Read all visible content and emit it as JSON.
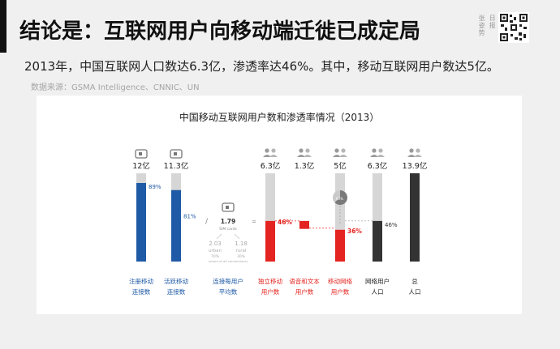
{
  "page": {
    "title": "结论是：互联网用户向移动端迁徙已成定局",
    "subtitle": "2013年，中国互联网人口数达6.3亿，渗透率达46%。其中，移动互联网用户数达5亿。",
    "source": "数据来源：GSMA Intelligence、CNNIC、UN",
    "brand": [
      "张姿势",
      "日报"
    ]
  },
  "colors": {
    "blue": "#1f5aa6",
    "red": "#e32420",
    "gray": "#d6d6d6",
    "dark": "#333333"
  },
  "chart_data": {
    "type": "bar",
    "title": "中国移动互联网用户数和渗透率情况（2013）",
    "bars": [
      {
        "value_label": "12亿",
        "icon": "sim-card-icon",
        "pct_label": "89%",
        "fill": 0.89,
        "color": "blue",
        "label": [
          "注册移动",
          "连接数"
        ]
      },
      {
        "value_label": "11.3亿",
        "icon": "sim-card-icon",
        "pct_label": "81%",
        "fill": 0.81,
        "color": "blue",
        "label": [
          "活跃移动",
          "连接数"
        ]
      },
      {
        "value_label": "6.3亿",
        "icon": "people-icon",
        "pct_label": "46%",
        "fill": 0.46,
        "color": "red",
        "label": [
          "独立移动",
          "用户数"
        ]
      },
      {
        "value_label": "1.3亿",
        "icon": "people-icon",
        "color": "red",
        "label": [
          "语音和文本",
          "用户数"
        ]
      },
      {
        "value_label": "5亿",
        "icon": "people-icon",
        "pct_label": "36%",
        "fill": 0.36,
        "color": "red",
        "label": [
          "移动网络",
          "用户数"
        ]
      },
      {
        "value_label": "6.3亿",
        "icon": "people-icon",
        "pct_label": "46%",
        "fill": 0.46,
        "color": "dark",
        "label": [
          "网络用户",
          "人口"
        ]
      },
      {
        "value_label": "13.9亿",
        "icon": "people-icon",
        "fill": 1.0,
        "color": "dark",
        "label": [
          "总",
          "人口"
        ]
      }
    ],
    "sim_per_user": {
      "value": "1.79",
      "unit": "SIM cards",
      "urban_value": "2.03",
      "urban_label": "urban",
      "urban_share": "70%",
      "rural_value": "1.18",
      "rural_label": "rural",
      "rural_share": "30%",
      "note": "(share of all connections)",
      "label": [
        "连接每用户",
        "平均数"
      ],
      "symbols": [
        "/",
        "="
      ]
    },
    "pie_label": "63%"
  }
}
